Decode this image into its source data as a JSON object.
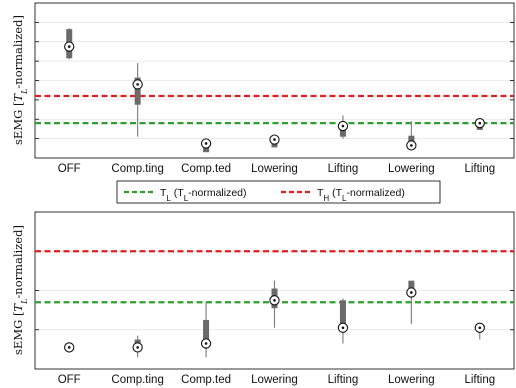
{
  "chart_data": [
    {
      "type": "box",
      "ylabel_main": "sEMG [",
      "ylabel_var": "T",
      "ylabel_sub": "L",
      "ylabel_tail": "-normalized]",
      "categories": [
        "OFF",
        "Comp.ting",
        "Comp.ted",
        "Lowering",
        "Lifting",
        "Lowering",
        "Lifting"
      ],
      "ylim": [
        0,
        8
      ],
      "grid": true,
      "thresholds": [
        {
          "id": "TL",
          "value": 1.8,
          "color": "#2ca02c"
        },
        {
          "id": "TH",
          "value": 3.2,
          "color": "#e02020"
        }
      ],
      "boxes": [
        {
          "median": 5.75,
          "q1": 5.15,
          "q3": 6.65,
          "whisker_low": 5.1,
          "whisker_high": 6.7
        },
        {
          "median": 3.8,
          "q1": 2.75,
          "q3": 4.15,
          "whisker_low": 1.1,
          "whisker_high": 4.9
        },
        {
          "median": 0.75,
          "q1": 0.3,
          "q3": 0.85,
          "whisker_low": 0.3,
          "whisker_high": 0.85
        },
        {
          "median": 0.95,
          "q1": 0.55,
          "q3": 1.1,
          "whisker_low": 0.55,
          "whisker_high": 1.1
        },
        {
          "median": 1.65,
          "q1": 1.1,
          "q3": 1.8,
          "whisker_low": 1.0,
          "whisker_high": 2.2
        },
        {
          "median": 0.65,
          "q1": 0.5,
          "q3": 1.15,
          "whisker_low": 0.4,
          "whisker_high": 1.9
        },
        {
          "median": 1.8,
          "q1": 1.45,
          "q3": 1.85,
          "whisker_low": 1.45,
          "whisker_high": 1.85
        }
      ]
    },
    {
      "type": "box",
      "ylabel_main": "sEMG [",
      "ylabel_var": "T",
      "ylabel_sub": "L",
      "ylabel_tail": "-normalized]",
      "categories": [
        "OFF",
        "Comp.ting",
        "Comp.ted",
        "Lowering",
        "Lifting",
        "Lowering",
        "Lifting"
      ],
      "ylim": [
        0,
        4
      ],
      "grid": true,
      "thresholds": [
        {
          "id": "TL",
          "value": 1.7,
          "color": "#2ca02c"
        },
        {
          "id": "TH",
          "value": 3.0,
          "color": "#e02020"
        }
      ],
      "boxes": [
        {
          "median": 0.55,
          "q1": 0.55,
          "q3": 0.55,
          "whisker_low": 0.5,
          "whisker_high": 0.6
        },
        {
          "median": 0.55,
          "q1": 0.45,
          "q3": 0.75,
          "whisker_low": 0.3,
          "whisker_high": 0.85
        },
        {
          "median": 0.65,
          "q1": 0.55,
          "q3": 1.25,
          "whisker_low": 0.3,
          "whisker_high": 1.7
        },
        {
          "median": 1.75,
          "q1": 1.55,
          "q3": 2.05,
          "whisker_low": 1.05,
          "whisker_high": 2.25
        },
        {
          "median": 1.05,
          "q1": 0.95,
          "q3": 1.75,
          "whisker_low": 0.65,
          "whisker_high": 1.8
        },
        {
          "median": 1.95,
          "q1": 1.85,
          "q3": 2.25,
          "whisker_low": 1.15,
          "whisker_high": 2.25
        },
        {
          "median": 1.05,
          "q1": 0.95,
          "q3": 1.05,
          "whisker_low": 0.75,
          "whisker_high": 1.1
        }
      ]
    }
  ],
  "legend": {
    "entries": [
      {
        "id": "TL",
        "symbol": "T",
        "sub": "L",
        "label_open": " (T",
        "label_sub": "L",
        "label_close": "-normalized)",
        "color": "#2ca02c"
      },
      {
        "id": "TH",
        "symbol": "T",
        "sub": "H",
        "label_open": " (T",
        "label_sub": "L",
        "label_close": "-normalized)",
        "color": "#e02020"
      }
    ]
  }
}
